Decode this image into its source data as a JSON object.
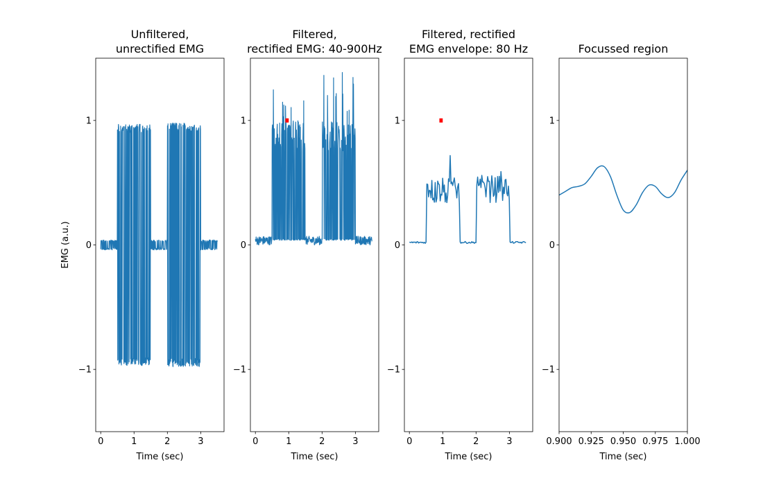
{
  "chart_data": [
    {
      "type": "line",
      "title_lines": [
        "Unfiltered,",
        "unrectified EMG"
      ],
      "xlabel": "Time (sec)",
      "ylabel": "EMG (a.u.)",
      "xlim": [
        -0.15,
        3.7
      ],
      "ylim": [
        -1.5,
        1.5
      ],
      "xticks": [
        0,
        1,
        2,
        3
      ],
      "xtick_labels": [
        "0",
        "1",
        "2",
        "3"
      ],
      "yticks": [
        -1,
        0,
        1
      ],
      "ytick_labels": [
        "−1",
        "0",
        "1"
      ],
      "series": [
        {
          "color": "#1f77b4",
          "baseline_amplitude": 0.04,
          "bursts": [
            {
              "start": 0.5,
              "end": 1.5,
              "amplitude": 0.97
            },
            {
              "start": 2.0,
              "end": 3.0,
              "amplitude": 0.98
            }
          ],
          "x_range": [
            0,
            3.5
          ],
          "signal": "bipolar"
        }
      ],
      "grid": false
    },
    {
      "type": "line",
      "title_lines": [
        "Filtered,",
        "rectified EMG: 40-900Hz"
      ],
      "xlabel": "Time (sec)",
      "ylabel": "",
      "xlim": [
        -0.15,
        3.7
      ],
      "ylim": [
        -1.5,
        1.5
      ],
      "xticks": [
        0,
        1,
        2,
        3
      ],
      "xtick_labels": [
        "0",
        "1",
        "2",
        "3"
      ],
      "yticks": [
        -1,
        0,
        1
      ],
      "ytick_labels": [
        "−1",
        "0",
        "1"
      ],
      "series": [
        {
          "color": "#1f77b4",
          "baseline_amplitude": 0.07,
          "bursts": [
            {
              "start": 0.5,
              "end": 1.5,
              "amplitude": 1.27
            },
            {
              "start": 2.0,
              "end": 3.0,
              "amplitude": 1.39
            }
          ],
          "x_range": [
            0,
            3.5
          ],
          "signal": "rectified"
        }
      ],
      "highlight": {
        "x": [
          0.9,
          1.0
        ],
        "y": 1.0,
        "color": "#ff0000"
      },
      "grid": false
    },
    {
      "type": "line",
      "title_lines": [
        "Filtered, rectified",
        "EMG envelope: 80 Hz"
      ],
      "xlabel": "Time (sec)",
      "ylabel": "",
      "xlim": [
        -0.15,
        3.7
      ],
      "ylim": [
        -1.5,
        1.5
      ],
      "xticks": [
        0,
        1,
        2,
        3
      ],
      "xtick_labels": [
        "0",
        "1",
        "2",
        "3"
      ],
      "yticks": [
        -1,
        0,
        1
      ],
      "ytick_labels": [
        "−1",
        "0",
        "1"
      ],
      "series": [
        {
          "color": "#1f77b4",
          "baseline_level": 0.02,
          "bursts": [
            {
              "start": 0.5,
              "end": 1.5,
              "level": 0.43,
              "peak": 0.72
            },
            {
              "start": 2.0,
              "end": 3.0,
              "level": 0.45,
              "peak": 0.65
            }
          ],
          "x_range": [
            0,
            3.5
          ],
          "signal": "envelope"
        }
      ],
      "highlight": {
        "x": [
          0.9,
          1.0
        ],
        "y": 1.0,
        "color": "#ff0000"
      },
      "grid": false
    },
    {
      "type": "line",
      "title_lines": [
        "Focussed region"
      ],
      "xlabel": "Time (sec)",
      "ylabel": "",
      "xlim": [
        0.9,
        1.0
      ],
      "ylim": [
        -1.5,
        1.5
      ],
      "xticks": [
        0.9,
        0.925,
        0.95,
        0.975,
        1.0
      ],
      "xtick_labels": [
        "0.900",
        "0.925",
        "0.950",
        "0.975",
        "1.000"
      ],
      "yticks": [
        -1,
        0,
        1
      ],
      "ytick_labels": [
        "−1",
        "0",
        "1"
      ],
      "series": [
        {
          "color": "#1f77b4",
          "x": [
            0.9,
            0.905,
            0.91,
            0.915,
            0.92,
            0.925,
            0.93,
            0.935,
            0.94,
            0.945,
            0.95,
            0.955,
            0.96,
            0.965,
            0.97,
            0.975,
            0.98,
            0.985,
            0.99,
            0.995,
            1.0
          ],
          "y": [
            0.4,
            0.43,
            0.46,
            0.47,
            0.49,
            0.55,
            0.62,
            0.63,
            0.55,
            0.4,
            0.28,
            0.26,
            0.32,
            0.42,
            0.48,
            0.47,
            0.41,
            0.38,
            0.42,
            0.52,
            0.6
          ]
        }
      ],
      "grid": false
    }
  ]
}
